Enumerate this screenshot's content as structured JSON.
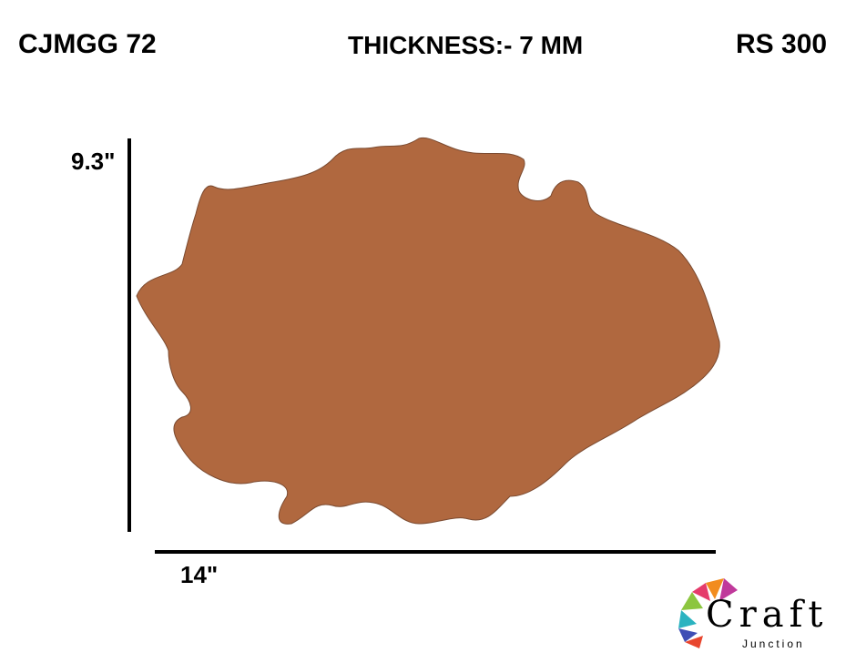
{
  "header": {
    "code": "CJMGG 72",
    "thickness": "THICKNESS:- 7 MM",
    "price": "RS 300"
  },
  "dimensions": {
    "height": "9.3\"",
    "width": "14\""
  },
  "logo": {
    "name": "Craft",
    "tagline": "Junction"
  }
}
